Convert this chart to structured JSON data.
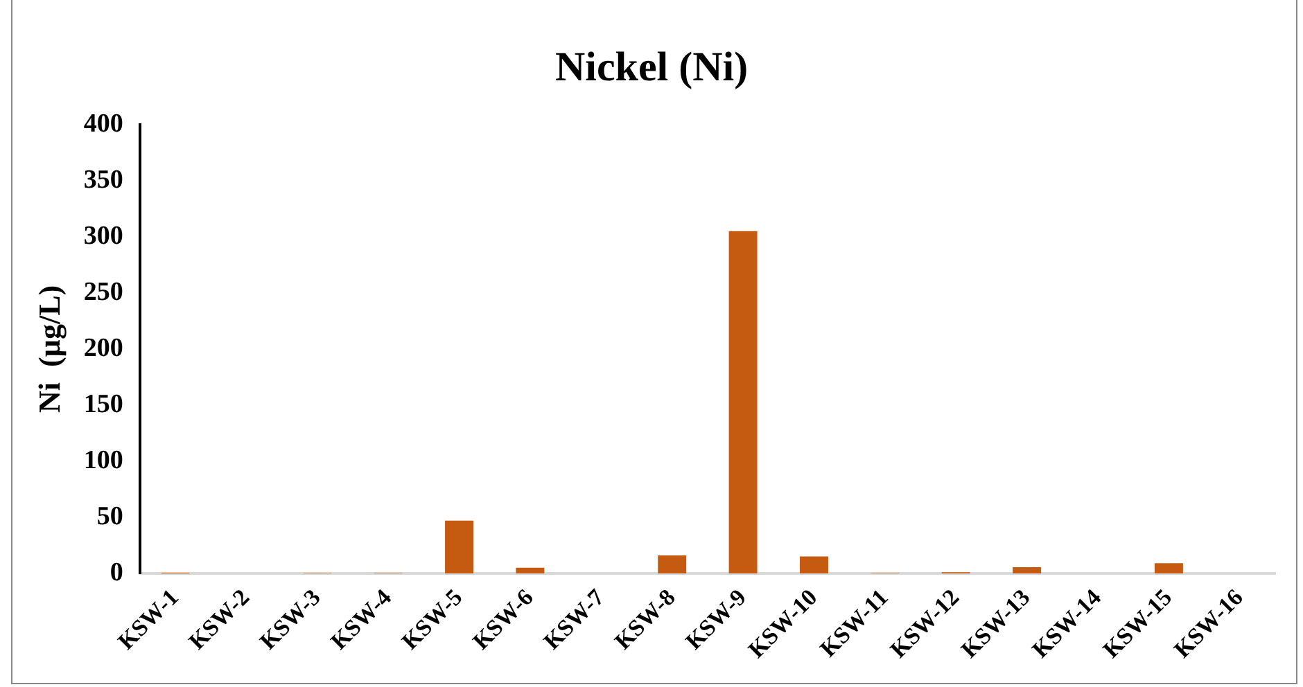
{
  "chart_data": {
    "type": "bar",
    "title": "Nickel (Ni)",
    "ylabel": "Ni  (µg/L)",
    "categories": [
      "KSW-1",
      "KSW-2",
      "KSW-3",
      "KSW-4",
      "KSW-5",
      "KSW-6",
      "KSW-7",
      "KSW-8",
      "KSW-9",
      "KSW-10",
      "KSW-11",
      "KSW-12",
      "KSW-13",
      "KSW-14",
      "KSW-15",
      "KSW-16"
    ],
    "values": [
      0.5,
      0,
      0.3,
      0.3,
      47,
      5,
      0,
      16,
      305,
      15,
      0.3,
      1,
      5.5,
      0,
      9,
      0
    ],
    "color": "#c55a11",
    "ylim": [
      0,
      400
    ],
    "yticks": [
      0,
      50,
      100,
      150,
      200,
      250,
      300,
      350,
      400
    ],
    "grid": false,
    "legend": false
  }
}
